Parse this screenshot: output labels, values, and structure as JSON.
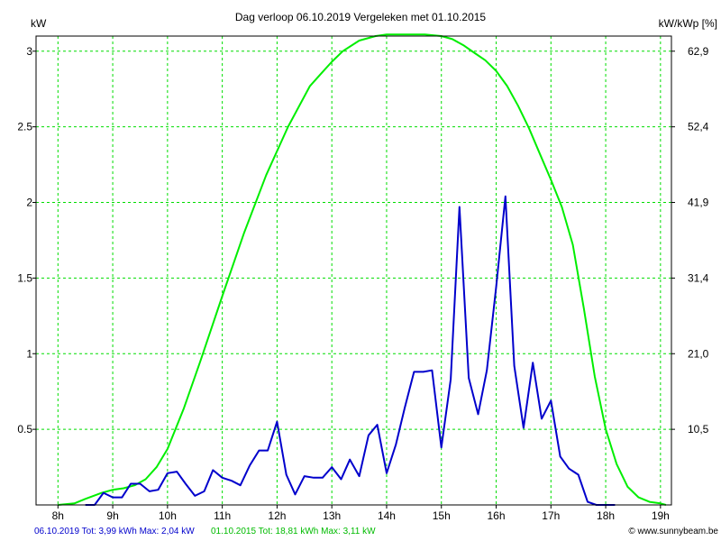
{
  "chart_data": {
    "type": "line",
    "title": "Dag  verloop 06.10.2019   Vergeleken met 01.10.2015",
    "ylabel": "kW",
    "ylabel_right": "kW/kWp [%]",
    "xlim": [
      7.6,
      19.2
    ],
    "ylim": [
      0,
      3.1
    ],
    "y_ticks": [
      0.5,
      1,
      1.5,
      2,
      2.5,
      3
    ],
    "y_tick_labels": [
      "0.5",
      "1",
      "1.5",
      "2",
      "2.5",
      "3"
    ],
    "y2_ticks": [
      0.5,
      1,
      1.5,
      2,
      2.5,
      3
    ],
    "y2_tick_labels": [
      "10,5",
      "21,0",
      "31,4",
      "41,9",
      "52,4",
      "62,9"
    ],
    "x_ticks": [
      8,
      9,
      10,
      11,
      12,
      13,
      14,
      15,
      16,
      17,
      18,
      19
    ],
    "x_tick_labels": [
      "8h",
      "9h",
      "10h",
      "11h",
      "12h",
      "13h",
      "14h",
      "15h",
      "16h",
      "17h",
      "18h",
      "19h"
    ],
    "grid": true,
    "colors": {
      "grid": "#00dd00",
      "current": "#0000cc",
      "reference": "#00ee00",
      "axis": "#000000"
    },
    "series": [
      {
        "name": "06.10.2019",
        "color": "#0000cc",
        "x": [
          8.5,
          8.67,
          8.83,
          9.0,
          9.17,
          9.33,
          9.5,
          9.67,
          9.83,
          10.0,
          10.17,
          10.33,
          10.5,
          10.67,
          10.83,
          11.0,
          11.17,
          11.33,
          11.5,
          11.67,
          11.83,
          12.0,
          12.17,
          12.33,
          12.5,
          12.67,
          12.83,
          13.0,
          13.17,
          13.33,
          13.5,
          13.67,
          13.83,
          14.0,
          14.17,
          14.33,
          14.5,
          14.67,
          14.83,
          15.0,
          15.17,
          15.33,
          15.5,
          15.67,
          15.83,
          16.0,
          16.17,
          16.33,
          16.5,
          16.67,
          16.83,
          17.0,
          17.17,
          17.33,
          17.5,
          17.67,
          17.83,
          18.0,
          18.17
        ],
        "y": [
          0,
          0,
          0.08,
          0.05,
          0.05,
          0.14,
          0.14,
          0.09,
          0.1,
          0.21,
          0.22,
          0.14,
          0.06,
          0.09,
          0.23,
          0.18,
          0.16,
          0.13,
          0.26,
          0.36,
          0.36,
          0.55,
          0.2,
          0.07,
          0.19,
          0.18,
          0.18,
          0.25,
          0.17,
          0.3,
          0.19,
          0.46,
          0.53,
          0.21,
          0.4,
          0.64,
          0.88,
          0.88,
          0.89,
          0.38,
          0.83,
          1.97,
          0.84,
          0.6,
          0.89,
          1.44,
          2.04,
          0.92,
          0.51,
          0.94,
          0.57,
          0.69,
          0.32,
          0.24,
          0.2,
          0.02,
          0,
          0,
          0
        ]
      },
      {
        "name": "01.10.2015",
        "color": "#00ee00",
        "x": [
          8.0,
          8.3,
          8.5,
          8.8,
          9.0,
          9.2,
          9.4,
          9.6,
          9.8,
          10.0,
          10.3,
          10.6,
          11.0,
          11.4,
          11.8,
          12.2,
          12.6,
          12.8,
          13.0,
          13.2,
          13.5,
          13.8,
          14.0,
          14.2,
          14.5,
          14.7,
          15.0,
          15.2,
          15.4,
          15.6,
          15.8,
          16.0,
          16.2,
          16.4,
          16.6,
          16.8,
          17.0,
          17.2,
          17.4,
          17.6,
          17.8,
          18.0,
          18.2,
          18.4,
          18.6,
          18.8,
          19.0,
          19.1
        ],
        "y": [
          0,
          0.01,
          0.04,
          0.08,
          0.1,
          0.11,
          0.13,
          0.17,
          0.25,
          0.37,
          0.64,
          0.95,
          1.38,
          1.8,
          2.18,
          2.5,
          2.77,
          2.85,
          2.93,
          3.0,
          3.07,
          3.1,
          3.11,
          3.11,
          3.11,
          3.11,
          3.1,
          3.08,
          3.04,
          2.99,
          2.94,
          2.87,
          2.77,
          2.64,
          2.49,
          2.32,
          2.15,
          1.97,
          1.72,
          1.3,
          0.85,
          0.5,
          0.27,
          0.12,
          0.05,
          0.02,
          0.01,
          0
        ]
      }
    ]
  },
  "footer": {
    "current_summary": "06.10.2019 Tot: 3,99 kWh Max: 2,04 kW",
    "reference_summary": "01.10.2015 Tot: 18,81 kWh Max: 3,11 kW",
    "brand": "© www.sunnybeam.be"
  }
}
